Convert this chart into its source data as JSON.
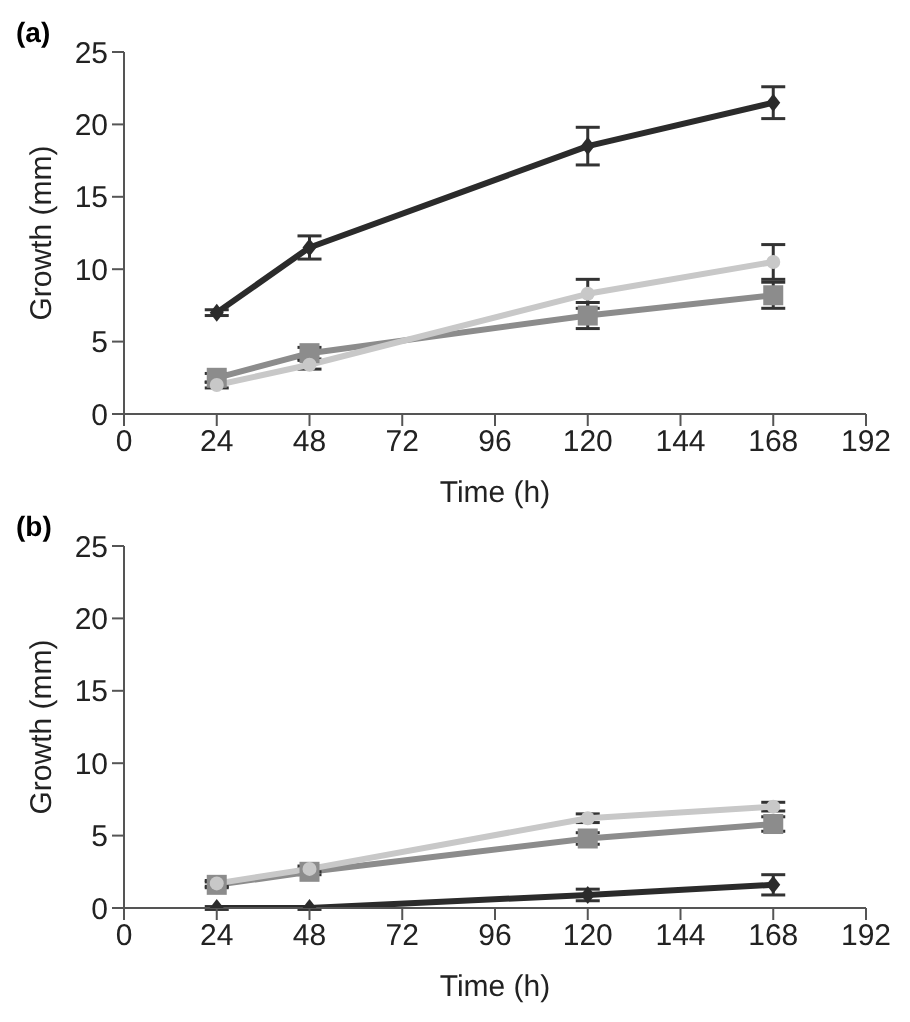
{
  "chart_data": [
    {
      "type": "line",
      "title": "(a)",
      "xlabel": "Time (h)",
      "ylabel": "Growth (mm)",
      "x": [
        24,
        48,
        120,
        168
      ],
      "xlim": [
        0,
        192
      ],
      "xticks": [
        0,
        24,
        48,
        72,
        96,
        120,
        144,
        168,
        192
      ],
      "ylim": [
        0,
        25
      ],
      "yticks": [
        0,
        5,
        10,
        15,
        20,
        25
      ],
      "grid": false,
      "legend": false,
      "line_style": "solid",
      "series": [
        {
          "color": "#2b2b2b",
          "marker": "diamond",
          "values": [
            7,
            11.5,
            18.5,
            21.5
          ],
          "errors": [
            0.2,
            0.8,
            1.3,
            1.1
          ]
        },
        {
          "color": "#8c8c8c",
          "marker": "square",
          "values": [
            2.5,
            4.2,
            6.8,
            8.2
          ],
          "errors": [
            0.3,
            0.4,
            0.9,
            0.9
          ]
        },
        {
          "color": "#c8c8c8",
          "marker": "circle",
          "values": [
            2,
            3.4,
            8.3,
            10.5
          ],
          "errors": [
            0.2,
            0.3,
            1,
            1.2
          ]
        }
      ]
    },
    {
      "type": "line",
      "title": "(b)",
      "xlabel": "Time (h)",
      "ylabel": "Growth (mm)",
      "x": [
        24,
        48,
        120,
        168
      ],
      "xlim": [
        0,
        192
      ],
      "xticks": [
        0,
        24,
        48,
        72,
        96,
        120,
        144,
        168,
        192
      ],
      "ylim": [
        0,
        25
      ],
      "yticks": [
        0,
        5,
        10,
        15,
        20,
        25
      ],
      "grid": false,
      "legend": false,
      "line_style": "solid",
      "series": [
        {
          "color": "#2b2b2b",
          "marker": "diamond",
          "values": [
            0,
            0,
            0.9,
            1.6
          ],
          "errors": [
            0.1,
            0.1,
            0.4,
            0.7
          ]
        },
        {
          "color": "#8c8c8c",
          "marker": "square",
          "values": [
            1.6,
            2.5,
            4.8,
            5.8
          ],
          "errors": [
            0.2,
            0.2,
            0.4,
            0.5
          ]
        },
        {
          "color": "#c8c8c8",
          "marker": "circle",
          "values": [
            1.7,
            2.7,
            6.2,
            7
          ],
          "errors": [
            0.2,
            0.2,
            0.3,
            0.3
          ]
        }
      ]
    }
  ]
}
